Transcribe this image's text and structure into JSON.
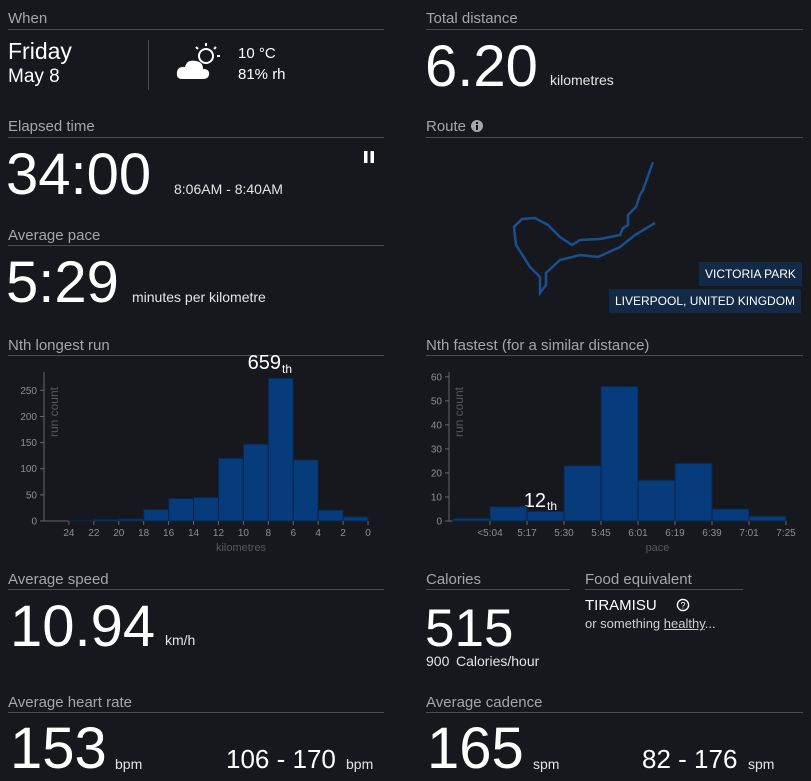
{
  "when": {
    "label": "When",
    "day": "Friday",
    "date": "May 8",
    "temperature": "10 °C",
    "humidity": "81% rh"
  },
  "total_distance": {
    "label": "Total distance",
    "value": "6.20",
    "unit": "kilometres"
  },
  "elapsed_time": {
    "label": "Elapsed time",
    "value": "34:00",
    "range": "8:06AM - 8:40AM"
  },
  "route": {
    "label": "Route",
    "place": "VICTORIA PARK",
    "location": "LIVERPOOL, UNITED KINGDOM"
  },
  "average_pace": {
    "label": "Average pace",
    "value": "5:29",
    "unit": "minutes per kilometre"
  },
  "nth_longest": {
    "label": "Nth longest run",
    "rank": "659",
    "rank_suffix": "th",
    "y_label": "run count",
    "x_label": "kilometres",
    "bins": [
      24,
      22,
      20,
      18,
      16,
      14,
      12,
      10,
      8,
      6,
      4,
      2,
      0
    ],
    "counts": [
      1,
      3,
      4,
      22,
      43,
      45,
      120,
      147,
      273,
      117,
      21,
      8
    ],
    "xlim": [
      26,
      0
    ],
    "ylim": [
      0,
      285
    ],
    "yticks": [
      0,
      50,
      100,
      150,
      200,
      250
    ]
  },
  "nth_fastest": {
    "label": "Nth fastest (for a similar distance)",
    "rank": "12",
    "rank_suffix": "th",
    "y_label": "run count",
    "x_label": "pace",
    "bins": [
      null,
      "<5:04",
      "5:17",
      "5:30",
      "5:45",
      "6:01",
      "6:19",
      "6:39",
      "7:01",
      "7:25"
    ],
    "counts": [
      1,
      6,
      4,
      23,
      56,
      17,
      24,
      5,
      2
    ],
    "ylim": [
      0,
      62
    ],
    "yticks": [
      0,
      10,
      20,
      30,
      40,
      50,
      60
    ]
  },
  "average_speed": {
    "label": "Average speed",
    "value": "10.94",
    "unit": "km/h"
  },
  "calories": {
    "label": "Calories",
    "value": "515",
    "rate": "900",
    "rate_unit": "Calories/hour"
  },
  "food_equivalent": {
    "label": "Food equivalent",
    "food": "TIRAMISU",
    "alt_text": "or something",
    "alt_link": "healthy",
    "alt_end": "..."
  },
  "average_heart_rate": {
    "label": "Average heart rate",
    "value": "153",
    "unit": "bpm",
    "range": "106 - 170",
    "range_unit": "bpm"
  },
  "average_cadence": {
    "label": "Average cadence",
    "value": "165",
    "unit": "spm",
    "range": "82 - 176",
    "range_unit": "spm"
  }
}
